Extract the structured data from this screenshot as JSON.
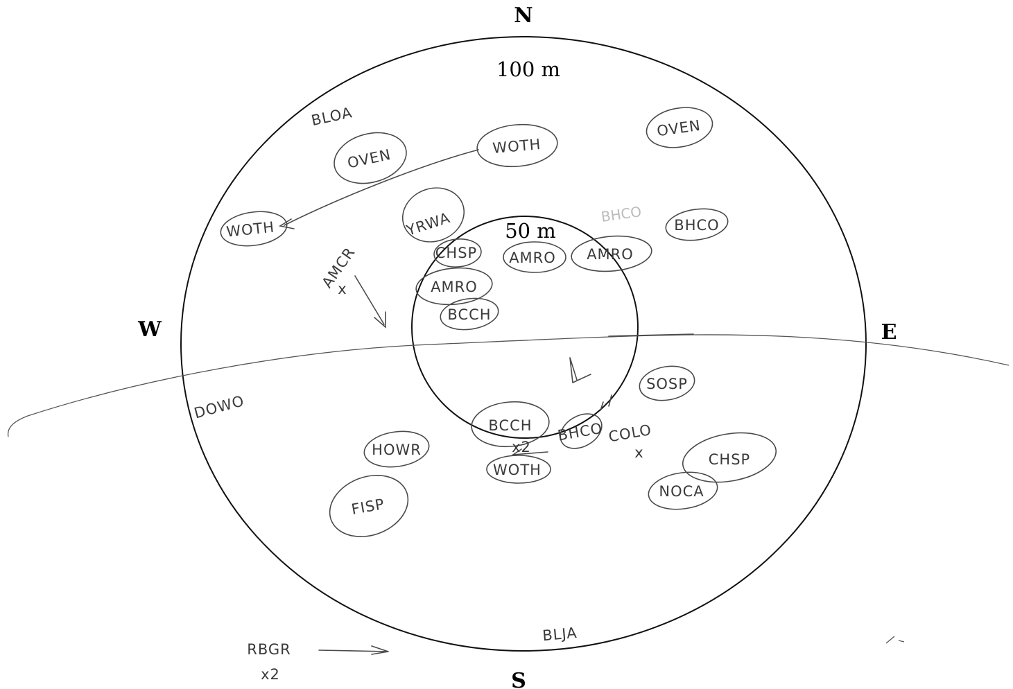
{
  "compass": {
    "north": "N",
    "south": "S",
    "east": "E",
    "west": "W"
  },
  "rings": {
    "outer_label": "100 m",
    "inner_label": "50 m"
  },
  "observations": [
    {
      "code": "BLOA",
      "circled": false
    },
    {
      "code": "OVEN",
      "circled": true
    },
    {
      "code": "WOTH",
      "circled": true
    },
    {
      "code": "OVEN",
      "circled": true
    },
    {
      "code": "WOTH",
      "circled": true
    },
    {
      "code": "YRWA",
      "circled": true
    },
    {
      "code": "AMCR",
      "circled": false,
      "note": "x"
    },
    {
      "code": "CHSP",
      "circled": true
    },
    {
      "code": "AMRO",
      "circled": true
    },
    {
      "code": "BCCH",
      "circled": true
    },
    {
      "code": "AMRO",
      "circled": true
    },
    {
      "code": "AMRO",
      "circled": true
    },
    {
      "code": "BHCO",
      "circled": true
    },
    {
      "code": "DOWO",
      "circled": false
    },
    {
      "code": "SOSP",
      "circled": true
    },
    {
      "code": "HOWR",
      "circled": true
    },
    {
      "code": "BCCH",
      "circled": true
    },
    {
      "code": "BHCO",
      "circled": true
    },
    {
      "code": "COLO",
      "circled": false,
      "note": "x"
    },
    {
      "code": "CHSP",
      "circled": true
    },
    {
      "code": "WOTH",
      "circled": true,
      "note": "x2"
    },
    {
      "code": "FISP",
      "circled": true
    },
    {
      "code": "NOCA",
      "circled": true
    },
    {
      "code": "BLJA",
      "circled": false
    },
    {
      "code": "RBGR",
      "circled": false,
      "note": "x2"
    }
  ]
}
